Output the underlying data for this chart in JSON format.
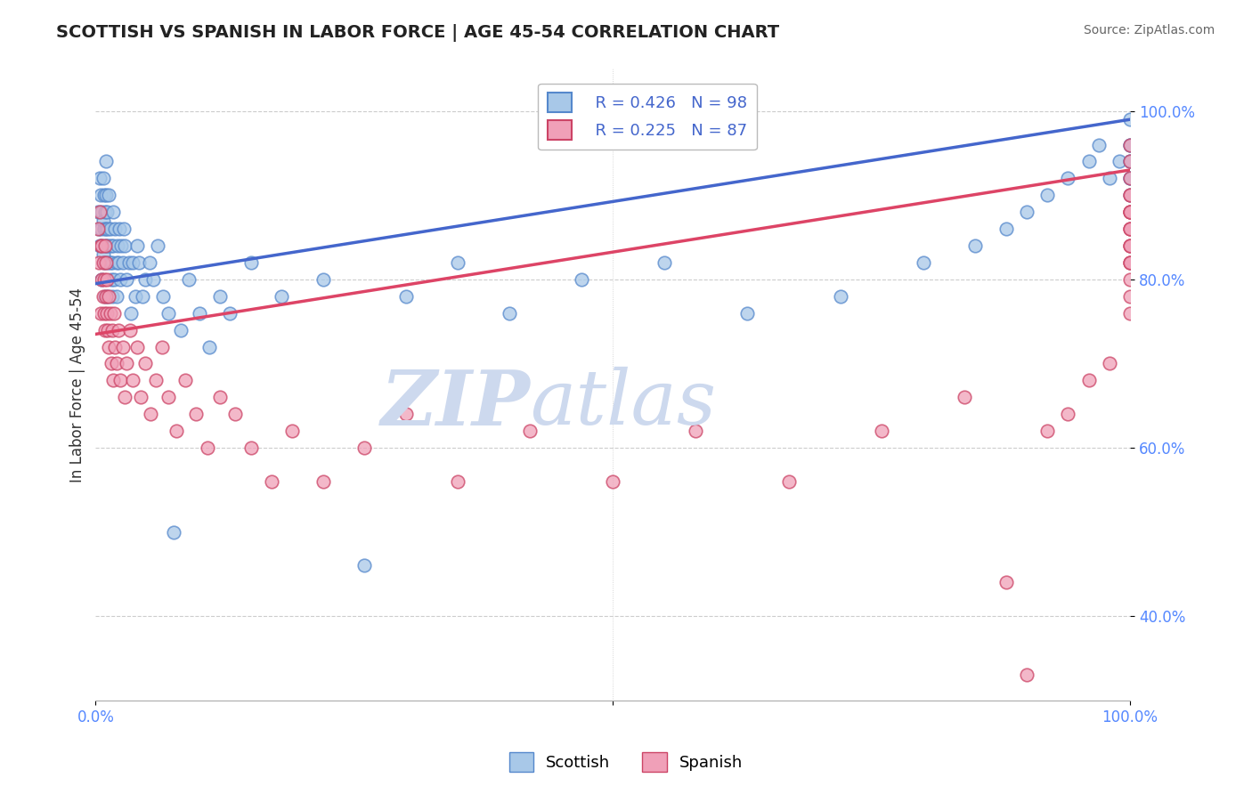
{
  "title": "SCOTTISH VS SPANISH IN LABOR FORCE | AGE 45-54 CORRELATION CHART",
  "source_text": "Source: ZipAtlas.com",
  "ylabel": "In Labor Force | Age 45-54",
  "xlim": [
    0.0,
    1.0
  ],
  "ylim": [
    0.3,
    1.05
  ],
  "y_ticks": [
    0.4,
    0.6,
    0.8,
    1.0
  ],
  "y_tick_labels": [
    "40.0%",
    "60.0%",
    "80.0%",
    "100.0%"
  ],
  "x_tick_vals": [
    0.0,
    0.5,
    1.0
  ],
  "x_tick_labels": [
    "0.0%",
    "",
    "100.0%"
  ],
  "grid_color": "#cccccc",
  "background_color": "#ffffff",
  "watermark_color": "#cdd9ee",
  "scottish_fill": "#a8c8e8",
  "scottish_edge": "#5588cc",
  "spanish_fill": "#f0a0b8",
  "spanish_edge": "#cc4466",
  "scottish_line_color": "#4466cc",
  "spanish_line_color": "#dd4466",
  "legend_r_scottish": "R = 0.426",
  "legend_n_scottish": "N = 98",
  "legend_r_spanish": "R = 0.225",
  "legend_n_spanish": "N = 87",
  "title_fontsize": 14,
  "scottish_x": [
    0.002,
    0.003,
    0.004,
    0.004,
    0.005,
    0.005,
    0.006,
    0.006,
    0.006,
    0.007,
    0.007,
    0.007,
    0.008,
    0.008,
    0.008,
    0.009,
    0.009,
    0.009,
    0.01,
    0.01,
    0.01,
    0.011,
    0.011,
    0.012,
    0.012,
    0.012,
    0.013,
    0.013,
    0.014,
    0.014,
    0.015,
    0.015,
    0.016,
    0.016,
    0.017,
    0.017,
    0.018,
    0.019,
    0.02,
    0.02,
    0.021,
    0.022,
    0.023,
    0.024,
    0.025,
    0.026,
    0.027,
    0.028,
    0.03,
    0.032,
    0.034,
    0.036,
    0.038,
    0.04,
    0.042,
    0.045,
    0.048,
    0.052,
    0.056,
    0.06,
    0.065,
    0.07,
    0.075,
    0.082,
    0.09,
    0.1,
    0.11,
    0.12,
    0.13,
    0.15,
    0.18,
    0.22,
    0.26,
    0.3,
    0.35,
    0.4,
    0.47,
    0.55,
    0.63,
    0.72,
    0.8,
    0.85,
    0.88,
    0.9,
    0.92,
    0.94,
    0.96,
    0.97,
    0.98,
    0.99,
    1.0,
    1.0,
    1.0,
    1.0,
    1.0,
    1.0,
    1.0,
    1.0
  ],
  "scottish_y": [
    0.88,
    0.86,
    0.92,
    0.84,
    0.9,
    0.86,
    0.88,
    0.84,
    0.8,
    0.87,
    0.83,
    0.92,
    0.86,
    0.9,
    0.82,
    0.88,
    0.84,
    0.78,
    0.86,
    0.9,
    0.94,
    0.84,
    0.88,
    0.82,
    0.86,
    0.78,
    0.84,
    0.9,
    0.82,
    0.86,
    0.8,
    0.84,
    0.78,
    0.82,
    0.84,
    0.88,
    0.8,
    0.86,
    0.82,
    0.78,
    0.84,
    0.82,
    0.86,
    0.8,
    0.84,
    0.82,
    0.86,
    0.84,
    0.8,
    0.82,
    0.76,
    0.82,
    0.78,
    0.84,
    0.82,
    0.78,
    0.8,
    0.82,
    0.8,
    0.84,
    0.78,
    0.76,
    0.5,
    0.74,
    0.8,
    0.76,
    0.72,
    0.78,
    0.76,
    0.82,
    0.78,
    0.8,
    0.46,
    0.78,
    0.82,
    0.76,
    0.8,
    0.82,
    0.76,
    0.78,
    0.82,
    0.84,
    0.86,
    0.88,
    0.9,
    0.92,
    0.94,
    0.96,
    0.92,
    0.94,
    0.96,
    0.92,
    0.94,
    0.9,
    0.92,
    0.96,
    0.94,
    0.99
  ],
  "spanish_x": [
    0.002,
    0.003,
    0.004,
    0.005,
    0.005,
    0.006,
    0.006,
    0.007,
    0.007,
    0.008,
    0.008,
    0.009,
    0.009,
    0.01,
    0.01,
    0.011,
    0.011,
    0.012,
    0.013,
    0.013,
    0.014,
    0.015,
    0.016,
    0.017,
    0.018,
    0.019,
    0.02,
    0.022,
    0.024,
    0.026,
    0.028,
    0.03,
    0.033,
    0.036,
    0.04,
    0.044,
    0.048,
    0.053,
    0.058,
    0.064,
    0.07,
    0.078,
    0.087,
    0.097,
    0.108,
    0.12,
    0.135,
    0.15,
    0.17,
    0.19,
    0.22,
    0.26,
    0.3,
    0.35,
    0.42,
    0.5,
    0.58,
    0.67,
    0.76,
    0.84,
    0.88,
    0.9,
    0.92,
    0.94,
    0.96,
    0.98,
    1.0,
    1.0,
    1.0,
    1.0,
    1.0,
    1.0,
    1.0,
    1.0,
    1.0,
    1.0,
    1.0,
    1.0,
    1.0,
    1.0,
    1.0,
    1.0,
    1.0,
    1.0,
    1.0,
    1.0,
    1.0
  ],
  "spanish_y": [
    0.86,
    0.82,
    0.88,
    0.84,
    0.76,
    0.8,
    0.84,
    0.78,
    0.82,
    0.76,
    0.8,
    0.84,
    0.74,
    0.82,
    0.78,
    0.76,
    0.8,
    0.74,
    0.78,
    0.72,
    0.76,
    0.7,
    0.74,
    0.68,
    0.76,
    0.72,
    0.7,
    0.74,
    0.68,
    0.72,
    0.66,
    0.7,
    0.74,
    0.68,
    0.72,
    0.66,
    0.7,
    0.64,
    0.68,
    0.72,
    0.66,
    0.62,
    0.68,
    0.64,
    0.6,
    0.66,
    0.64,
    0.6,
    0.56,
    0.62,
    0.56,
    0.6,
    0.64,
    0.56,
    0.62,
    0.56,
    0.62,
    0.56,
    0.62,
    0.66,
    0.44,
    0.33,
    0.62,
    0.64,
    0.68,
    0.7,
    0.76,
    0.78,
    0.8,
    0.82,
    0.84,
    0.86,
    0.82,
    0.84,
    0.86,
    0.88,
    0.82,
    0.84,
    0.88,
    0.86,
    0.88,
    0.9,
    0.88,
    0.9,
    0.92,
    0.94,
    0.96
  ]
}
